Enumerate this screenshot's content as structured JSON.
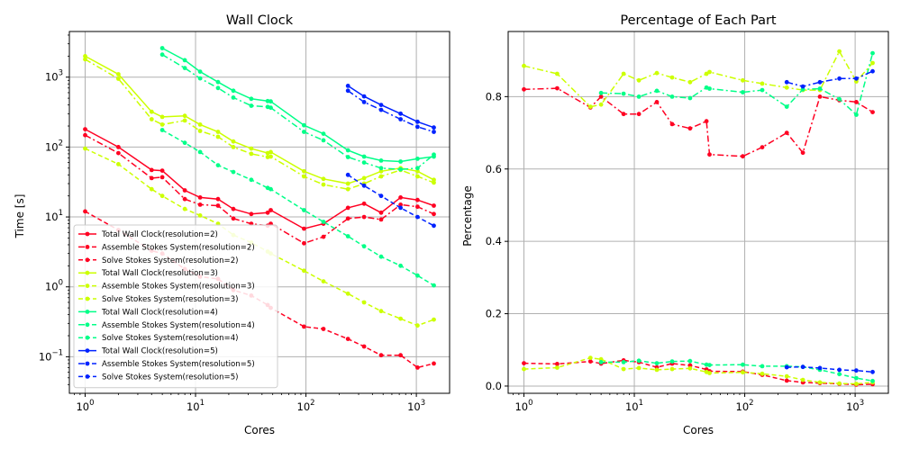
{
  "colors": {
    "r2": "#ff0022",
    "r3": "#ccff00",
    "r4": "#00ff88",
    "r5": "#0022ff",
    "grid": "#b0b0b0"
  },
  "chart_data": [
    {
      "type": "line",
      "title": "Wall Clock",
      "xlabel": "Cores",
      "ylabel": "Time [s]",
      "xscale": "log",
      "yscale": "log",
      "xlim": [
        0.72,
        2000
      ],
      "ylim": [
        0.03,
        4500
      ],
      "xticks": [
        {
          "v": 1,
          "b": "10",
          "e": "0"
        },
        {
          "v": 10,
          "b": "10",
          "e": "1"
        },
        {
          "v": 100,
          "b": "10",
          "e": "2"
        },
        {
          "v": 1000,
          "b": "10",
          "e": "3"
        }
      ],
      "yticks": [
        {
          "v": 0.1,
          "b": "10",
          "e": "−1"
        },
        {
          "v": 1,
          "b": "10",
          "e": "0"
        },
        {
          "v": 10,
          "b": "10",
          "e": "1"
        },
        {
          "v": 100,
          "b": "10",
          "e": "2"
        },
        {
          "v": 1000,
          "b": "10",
          "e": "3"
        }
      ],
      "grid": true,
      "legend_position": "lower-left",
      "series": [
        {
          "name": "Total Wall Clock(resolution=2)",
          "color_key": "r2",
          "dash": "solid",
          "x": [
            1,
            2,
            4,
            5,
            8,
            11,
            16,
            22,
            32,
            45,
            48,
            96,
            144,
            240,
            336,
            480,
            720,
            1024,
            1440
          ],
          "y": [
            180,
            100,
            47,
            46,
            24,
            19,
            18,
            13,
            11,
            11.5,
            12.5,
            6.8,
            8,
            13.5,
            15.5,
            11.5,
            19,
            17.5,
            14.5
          ]
        },
        {
          "name": "Assemble Stokes System(resolution=2)",
          "color_key": "r2",
          "dash": "dashdot",
          "x": [
            1,
            2,
            4,
            5,
            8,
            11,
            16,
            22,
            32,
            45,
            48,
            96,
            144,
            240,
            336,
            480,
            720,
            1024,
            1440
          ],
          "y": [
            148,
            82,
            36,
            37,
            18,
            15,
            14.5,
            9.5,
            8,
            7.5,
            8,
            4.2,
            5.2,
            9.5,
            10,
            9.2,
            15,
            14,
            11
          ]
        },
        {
          "name": "Solve Stokes System(resolution=2)",
          "color_key": "r2",
          "dash": "dashed",
          "x": [
            1,
            2,
            4,
            5,
            8,
            11,
            16,
            22,
            32,
            45,
            48,
            96,
            144,
            240,
            336,
            480,
            720,
            1024,
            1440
          ],
          "y": [
            12,
            6.5,
            3.3,
            3.0,
            1.8,
            1.4,
            1.3,
            0.9,
            0.75,
            0.55,
            0.5,
            0.27,
            0.25,
            0.18,
            0.14,
            0.105,
            0.105,
            0.07,
            0.08
          ]
        },
        {
          "name": "Total Wall Clock(resolution=3)",
          "color_key": "r3",
          "dash": "solid",
          "x": [
            1,
            2,
            4,
            5,
            8,
            11,
            16,
            22,
            32,
            45,
            48,
            96,
            144,
            240,
            336,
            480,
            720,
            1024,
            1440
          ],
          "y": [
            2000,
            1100,
            320,
            270,
            280,
            210,
            165,
            120,
            95,
            82,
            85,
            45,
            35,
            30,
            36,
            45,
            50,
            45,
            34
          ]
        },
        {
          "name": "Assemble Stokes System(resolution=3)",
          "color_key": "r3",
          "dash": "dashdot",
          "x": [
            1,
            2,
            4,
            5,
            8,
            11,
            16,
            22,
            32,
            45,
            48,
            96,
            144,
            240,
            336,
            480,
            720,
            1024,
            1440
          ],
          "y": [
            1800,
            950,
            250,
            210,
            240,
            170,
            140,
            100,
            80,
            72,
            73,
            38,
            29,
            25,
            30,
            38,
            47,
            38,
            31
          ]
        },
        {
          "name": "Solve Stokes System(resolution=3)",
          "color_key": "r3",
          "dash": "dashed",
          "x": [
            1,
            2,
            4,
            5,
            8,
            11,
            16,
            22,
            32,
            45,
            48,
            96,
            144,
            240,
            336,
            480,
            720,
            1024,
            1440
          ],
          "y": [
            95,
            57,
            25,
            20,
            13,
            10.5,
            8,
            5.5,
            4.3,
            3.2,
            3.0,
            1.7,
            1.2,
            0.8,
            0.6,
            0.45,
            0.35,
            0.28,
            0.34
          ]
        },
        {
          "name": "Total Wall Clock(resolution=4)",
          "color_key": "r4",
          "dash": "solid",
          "x": [
            5,
            8,
            11,
            16,
            22,
            32,
            45,
            48,
            96,
            144,
            240,
            336,
            480,
            720,
            1024,
            1440
          ],
          "y": [
            2600,
            1750,
            1200,
            850,
            640,
            490,
            455,
            450,
            205,
            155,
            90,
            73,
            64,
            62,
            68,
            73
          ]
        },
        {
          "name": "Assemble Stokes System(resolution=4)",
          "color_key": "r4",
          "dash": "dashdot",
          "x": [
            5,
            8,
            11,
            16,
            22,
            32,
            45,
            48,
            96,
            144,
            240,
            336,
            480,
            720,
            1024,
            1440
          ],
          "y": [
            2100,
            1350,
            960,
            700,
            510,
            390,
            375,
            365,
            165,
            125,
            72,
            60,
            50,
            48,
            50,
            78
          ]
        },
        {
          "name": "Solve Stokes System(resolution=4)",
          "color_key": "r4",
          "dash": "dashed",
          "x": [
            5,
            8,
            11,
            16,
            22,
            32,
            45,
            48,
            96,
            144,
            240,
            336,
            480,
            720,
            1024,
            1440
          ],
          "y": [
            175,
            115,
            85,
            55,
            44,
            34,
            26,
            25,
            12.5,
            8.5,
            5.3,
            3.8,
            2.7,
            2.0,
            1.45,
            1.05
          ]
        },
        {
          "name": "Total Wall Clock(resolution=5)",
          "color_key": "r5",
          "dash": "solid",
          "x": [
            240,
            336,
            480,
            720,
            1024,
            1440
          ],
          "y": [
            750,
            530,
            400,
            300,
            230,
            190
          ]
        },
        {
          "name": "Assemble Stokes System(resolution=5)",
          "color_key": "r5",
          "dash": "dashdot",
          "x": [
            240,
            336,
            480,
            720,
            1024,
            1440
          ],
          "y": [
            640,
            440,
            340,
            250,
            195,
            165
          ]
        },
        {
          "name": "Solve Stokes System(resolution=5)",
          "color_key": "r5",
          "dash": "dashed",
          "x": [
            240,
            336,
            480,
            720,
            1024,
            1440
          ],
          "y": [
            40,
            28,
            20,
            13.5,
            10,
            7.5
          ]
        }
      ]
    },
    {
      "type": "line",
      "title": "Percentage of Each Part",
      "xlabel": "Cores",
      "ylabel": "Percentage",
      "xscale": "log",
      "yscale": "linear",
      "xlim": [
        0.72,
        2000
      ],
      "ylim": [
        -0.02,
        0.98
      ],
      "xticks": [
        {
          "v": 1,
          "b": "10",
          "e": "0"
        },
        {
          "v": 10,
          "b": "10",
          "e": "1"
        },
        {
          "v": 100,
          "b": "10",
          "e": "2"
        },
        {
          "v": 1000,
          "b": "10",
          "e": "3"
        }
      ],
      "yticks": [
        {
          "v": 0.0,
          "t": "0.0"
        },
        {
          "v": 0.2,
          "t": "0.2"
        },
        {
          "v": 0.4,
          "t": "0.4"
        },
        {
          "v": 0.6,
          "t": "0.6"
        },
        {
          "v": 0.8,
          "t": "0.8"
        }
      ],
      "grid": true,
      "series": [
        {
          "name": "Assemble Stokes System(resolution=2)",
          "color_key": "r2",
          "dash": "dashdot",
          "x": [
            1,
            2,
            4,
            5,
            8,
            11,
            16,
            22,
            32,
            45,
            48,
            96,
            144,
            240,
            336,
            480,
            720,
            1024,
            1440
          ],
          "y": [
            0.82,
            0.823,
            0.77,
            0.8,
            0.752,
            0.752,
            0.785,
            0.724,
            0.712,
            0.732,
            0.64,
            0.635,
            0.66,
            0.7,
            0.645,
            0.8,
            0.79,
            0.785,
            0.757
          ]
        },
        {
          "name": "Solve Stokes System(resolution=2)",
          "color_key": "r2",
          "dash": "dashed",
          "x": [
            1,
            2,
            4,
            5,
            8,
            11,
            16,
            22,
            32,
            45,
            48,
            96,
            144,
            240,
            336,
            480,
            720,
            1024,
            1440
          ],
          "y": [
            0.063,
            0.061,
            0.068,
            0.062,
            0.071,
            0.066,
            0.052,
            0.062,
            0.057,
            0.046,
            0.041,
            0.04,
            0.031,
            0.015,
            0.01,
            0.008,
            0.006,
            0.004,
            0.005
          ]
        },
        {
          "name": "Assemble Stokes System(resolution=3)",
          "color_key": "r3",
          "dash": "dashdot",
          "x": [
            1,
            2,
            4,
            5,
            8,
            11,
            16,
            22,
            32,
            45,
            48,
            96,
            144,
            240,
            336,
            480,
            720,
            1024,
            1440
          ],
          "y": [
            0.885,
            0.863,
            0.772,
            0.778,
            0.863,
            0.845,
            0.865,
            0.853,
            0.84,
            0.863,
            0.868,
            0.845,
            0.836,
            0.825,
            0.818,
            0.818,
            0.925,
            0.842,
            0.893
          ]
        },
        {
          "name": "Solve Stokes System(resolution=3)",
          "color_key": "r3",
          "dash": "dashed",
          "x": [
            1,
            2,
            4,
            5,
            8,
            11,
            16,
            22,
            32,
            45,
            48,
            96,
            144,
            240,
            336,
            480,
            720,
            1024,
            1440
          ],
          "y": [
            0.047,
            0.051,
            0.078,
            0.074,
            0.047,
            0.05,
            0.045,
            0.047,
            0.049,
            0.039,
            0.036,
            0.038,
            0.034,
            0.027,
            0.017,
            0.01,
            0.007,
            0.006,
            0.01
          ]
        },
        {
          "name": "Assemble Stokes System(resolution=4)",
          "color_key": "r4",
          "dash": "dashdot",
          "x": [
            5,
            8,
            11,
            16,
            22,
            32,
            45,
            48,
            96,
            144,
            240,
            336,
            480,
            720,
            1024,
            1440
          ],
          "y": [
            0.81,
            0.808,
            0.8,
            0.816,
            0.8,
            0.796,
            0.825,
            0.822,
            0.812,
            0.818,
            0.772,
            0.82,
            0.822,
            0.793,
            0.75,
            0.92
          ]
        },
        {
          "name": "Solve Stokes System(resolution=4)",
          "color_key": "r4",
          "dash": "dashed",
          "x": [
            5,
            8,
            11,
            16,
            22,
            32,
            45,
            48,
            96,
            144,
            240,
            336,
            480,
            720,
            1024,
            1440
          ],
          "y": [
            0.066,
            0.066,
            0.07,
            0.063,
            0.068,
            0.069,
            0.059,
            0.058,
            0.059,
            0.055,
            0.055,
            0.053,
            0.045,
            0.033,
            0.022,
            0.014
          ]
        },
        {
          "name": "Assemble Stokes System(resolution=5)",
          "color_key": "r5",
          "dash": "dashdot",
          "x": [
            240,
            336,
            480,
            720,
            1024,
            1440
          ],
          "y": [
            0.84,
            0.828,
            0.84,
            0.85,
            0.85,
            0.87
          ]
        },
        {
          "name": "Solve Stokes System(resolution=5)",
          "color_key": "r5",
          "dash": "dashed",
          "x": [
            240,
            336,
            480,
            720,
            1024,
            1440
          ],
          "y": [
            0.052,
            0.053,
            0.05,
            0.045,
            0.043,
            0.039
          ]
        }
      ]
    }
  ]
}
